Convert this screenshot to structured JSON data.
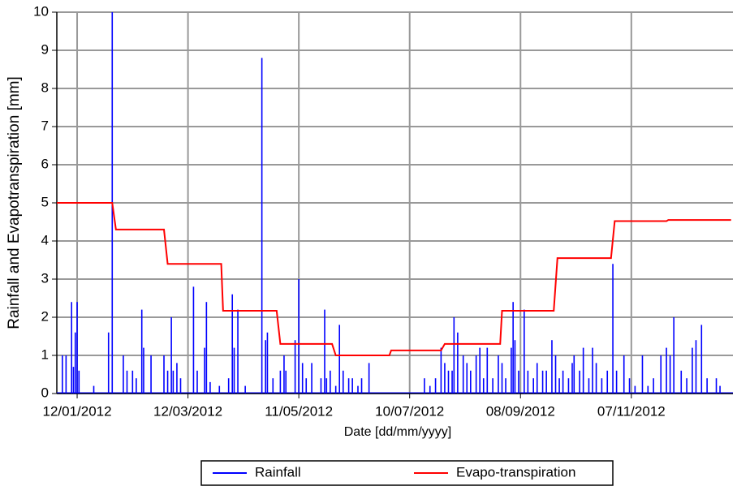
{
  "chart_data": {
    "type": "line",
    "xlabel": "Date [dd/mm/yyyy]",
    "ylabel": "Rainfall and Evapotranspiration [mm]",
    "xlim": [
      "2012-01-01",
      "2013-01-01"
    ],
    "xticks": [
      {
        "value": "2012-01-12",
        "label": "12/01/2012"
      },
      {
        "value": "2012-03-12",
        "label": "12/03/2012"
      },
      {
        "value": "2012-05-11",
        "label": "11/05/2012"
      },
      {
        "value": "2012-07-10",
        "label": "10/07/2012"
      },
      {
        "value": "2012-09-08",
        "label": "08/09/2012"
      },
      {
        "value": "2012-11-07",
        "label": "07/11/2012"
      }
    ],
    "ylim": [
      0,
      10
    ],
    "yticks": [
      0,
      1,
      2,
      3,
      4,
      5,
      6,
      7,
      8,
      9,
      10
    ],
    "grid": true,
    "legend": "bottom",
    "series": [
      {
        "name": "Rainfall",
        "type": "bar",
        "color": "#0000ff",
        "x": [
          "2012-01-04",
          "2012-01-06",
          "2012-01-09",
          "2012-01-10",
          "2012-01-11",
          "2012-01-12",
          "2012-01-13",
          "2012-01-21",
          "2012-01-29",
          "2012-01-31",
          "2012-02-06",
          "2012-02-08",
          "2012-02-11",
          "2012-02-13",
          "2012-02-16",
          "2012-02-17",
          "2012-02-21",
          "2012-02-28",
          "2012-03-01",
          "2012-03-03",
          "2012-03-04",
          "2012-03-06",
          "2012-03-08",
          "2012-03-15",
          "2012-03-17",
          "2012-03-21",
          "2012-03-22",
          "2012-03-24",
          "2012-03-29",
          "2012-04-03",
          "2012-04-05",
          "2012-04-06",
          "2012-04-08",
          "2012-04-12",
          "2012-04-21",
          "2012-04-23",
          "2012-04-24",
          "2012-04-27",
          "2012-05-01",
          "2012-05-03",
          "2012-05-04",
          "2012-05-09",
          "2012-05-11",
          "2012-05-13",
          "2012-05-15",
          "2012-05-18",
          "2012-05-23",
          "2012-05-25",
          "2012-05-26",
          "2012-05-28",
          "2012-05-31",
          "2012-06-02",
          "2012-06-04",
          "2012-06-07",
          "2012-06-09",
          "2012-06-12",
          "2012-06-14",
          "2012-06-18",
          "2012-07-18",
          "2012-07-21",
          "2012-07-24",
          "2012-07-27",
          "2012-07-29",
          "2012-07-31",
          "2012-08-02",
          "2012-08-03",
          "2012-08-05",
          "2012-08-08",
          "2012-08-10",
          "2012-08-12",
          "2012-08-15",
          "2012-08-17",
          "2012-08-19",
          "2012-08-21",
          "2012-08-24",
          "2012-08-27",
          "2012-08-29",
          "2012-08-31",
          "2012-09-03",
          "2012-09-04",
          "2012-09-05",
          "2012-09-07",
          "2012-09-10",
          "2012-09-12",
          "2012-09-15",
          "2012-09-17",
          "2012-09-20",
          "2012-09-22",
          "2012-09-25",
          "2012-09-27",
          "2012-09-29",
          "2012-10-01",
          "2012-10-04",
          "2012-10-06",
          "2012-10-07",
          "2012-10-10",
          "2012-10-12",
          "2012-10-15",
          "2012-10-17",
          "2012-10-19",
          "2012-10-22",
          "2012-10-25",
          "2012-10-28",
          "2012-10-30",
          "2012-11-03",
          "2012-11-06",
          "2012-11-09",
          "2012-11-13",
          "2012-11-16",
          "2012-11-19",
          "2012-11-23",
          "2012-11-26",
          "2012-11-28",
          "2012-11-30",
          "2012-12-04",
          "2012-12-07",
          "2012-12-10",
          "2012-12-12",
          "2012-12-15",
          "2012-12-18",
          "2012-12-23",
          "2012-12-25"
        ],
        "values": [
          1.0,
          1.0,
          2.4,
          0.7,
          1.6,
          2.4,
          0.6,
          0.2,
          1.6,
          10,
          1.0,
          0.6,
          0.6,
          0.4,
          2.2,
          1.2,
          1.0,
          1.0,
          0.6,
          2.0,
          0.6,
          0.8,
          0.4,
          2.8,
          0.6,
          1.2,
          2.4,
          0.3,
          0.2,
          0.4,
          2.6,
          1.2,
          2.2,
          0.2,
          8.8,
          1.4,
          1.6,
          0.4,
          0.6,
          1.0,
          0.6,
          1.4,
          3.0,
          0.8,
          0.4,
          0.8,
          0.4,
          2.2,
          0.4,
          0.6,
          0.2,
          1.8,
          0.6,
          0.4,
          0.4,
          0.2,
          0.4,
          0.8,
          0.4,
          0.2,
          0.4,
          1.2,
          0.8,
          0.6,
          0.6,
          2.0,
          1.6,
          1.0,
          0.8,
          0.6,
          1.0,
          1.2,
          0.4,
          1.2,
          0.4,
          1.0,
          0.8,
          0.4,
          1.2,
          2.4,
          1.4,
          0.6,
          2.2,
          0.6,
          0.4,
          0.8,
          0.6,
          0.6,
          1.4,
          1.0,
          0.4,
          0.6,
          0.4,
          0.8,
          1.0,
          0.6,
          1.2,
          0.4,
          1.2,
          0.8,
          0.4,
          0.6,
          3.4,
          0.6,
          1.0,
          0.4,
          0.2,
          1.0,
          0.2,
          0.4,
          1.0,
          1.2,
          1.0,
          2.0,
          0.6,
          0.4,
          1.2,
          1.4,
          1.8,
          0.4,
          0.4,
          0.2
        ]
      },
      {
        "name": "Evapo-transpiration",
        "type": "line",
        "color": "#ff0000",
        "x": [
          "2012-01-01",
          "2012-01-31",
          "2012-02-02",
          "2012-02-28",
          "2012-03-01",
          "2012-03-30",
          "2012-03-31",
          "2012-04-29",
          "2012-05-01",
          "2012-05-29",
          "2012-05-31",
          "2012-06-29",
          "2012-06-30",
          "2012-07-27",
          "2012-07-29",
          "2012-08-28",
          "2012-08-29",
          "2012-09-26",
          "2012-09-28",
          "2012-10-27",
          "2012-10-29",
          "2012-11-26",
          "2012-11-27",
          "2012-12-31"
        ],
        "values": [
          5.0,
          5.0,
          4.3,
          4.3,
          3.4,
          3.4,
          2.17,
          2.17,
          1.3,
          1.3,
          1.0,
          1.0,
          1.13,
          1.13,
          1.3,
          1.3,
          2.17,
          2.17,
          3.55,
          3.55,
          4.52,
          4.52,
          4.55,
          4.55
        ]
      }
    ]
  }
}
